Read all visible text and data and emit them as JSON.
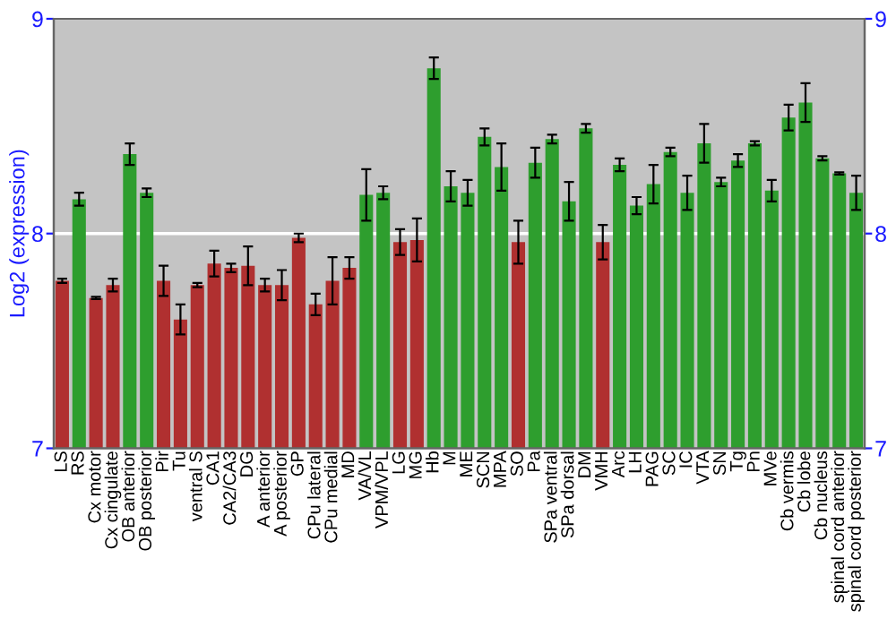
{
  "chart_data": {
    "type": "bar",
    "ylabel": "Log2 (expression)",
    "categories": [
      "LS",
      "RS",
      "Cx motor",
      "Cx cingulate",
      "OB anterior",
      "OB posterior",
      "Pir",
      "Tu",
      "ventral S",
      "CA1",
      "CA2/CA3",
      "DG",
      "A anterior",
      "A posterior",
      "GP",
      "CPu lateral",
      "CPu medial",
      "MD",
      "VA/VL",
      "VPM/VPL",
      "LG",
      "MG",
      "Hb",
      "M",
      "ME",
      "SCN",
      "MPA",
      "SO",
      "Pa",
      "SPa ventral",
      "SPa dorsal",
      "DM",
      "VMH",
      "Arc",
      "LH",
      "PAG",
      "SC",
      "IC",
      "VTA",
      "SN",
      "Tg",
      "Pn",
      "MVe",
      "Cb vermis",
      "Cb lobe",
      "Cb nucleus",
      "spinal cord anterior",
      "spinal cord posterior"
    ],
    "values": [
      7.78,
      8.16,
      7.7,
      7.76,
      8.37,
      8.19,
      7.78,
      7.6,
      7.76,
      7.86,
      7.84,
      7.85,
      7.76,
      7.76,
      7.98,
      7.67,
      7.78,
      7.84,
      8.18,
      8.19,
      7.96,
      7.97,
      8.77,
      8.22,
      8.19,
      8.45,
      8.31,
      7.96,
      8.33,
      8.44,
      8.15,
      8.49,
      7.96,
      8.32,
      8.13,
      8.23,
      8.38,
      8.19,
      8.42,
      8.24,
      8.34,
      8.42,
      8.2,
      8.54,
      8.61,
      8.35,
      8.28,
      8.19
    ],
    "errors": [
      0.01,
      0.03,
      0.005,
      0.03,
      0.05,
      0.02,
      0.07,
      0.07,
      0.01,
      0.06,
      0.02,
      0.09,
      0.03,
      0.07,
      0.02,
      0.05,
      0.11,
      0.05,
      0.12,
      0.03,
      0.06,
      0.1,
      0.05,
      0.07,
      0.06,
      0.04,
      0.11,
      0.1,
      0.07,
      0.02,
      0.09,
      0.02,
      0.08,
      0.03,
      0.04,
      0.09,
      0.02,
      0.08,
      0.09,
      0.02,
      0.03,
      0.01,
      0.05,
      0.06,
      0.09,
      0.01,
      0.005,
      0.08
    ],
    "colors": [
      "#b03030",
      "#2e9e2e",
      "#b03030",
      "#b03030",
      "#2e9e2e",
      "#2e9e2e",
      "#b03030",
      "#b03030",
      "#b03030",
      "#b03030",
      "#b03030",
      "#b03030",
      "#b03030",
      "#b03030",
      "#b03030",
      "#b03030",
      "#b03030",
      "#b03030",
      "#2e9e2e",
      "#2e9e2e",
      "#b03030",
      "#b03030",
      "#2e9e2e",
      "#2e9e2e",
      "#2e9e2e",
      "#2e9e2e",
      "#2e9e2e",
      "#b03030",
      "#2e9e2e",
      "#2e9e2e",
      "#2e9e2e",
      "#2e9e2e",
      "#b03030",
      "#2e9e2e",
      "#2e9e2e",
      "#2e9e2e",
      "#2e9e2e",
      "#2e9e2e",
      "#2e9e2e",
      "#2e9e2e",
      "#2e9e2e",
      "#2e9e2e",
      "#2e9e2e",
      "#2e9e2e",
      "#2e9e2e",
      "#2e9e2e",
      "#2e9e2e",
      "#2e9e2e"
    ],
    "ylim": [
      7,
      9
    ],
    "yticks": [
      7,
      8,
      9
    ],
    "y2lim": [
      7,
      9
    ],
    "y2ticks": [
      7,
      8,
      9
    ],
    "ref_lines": [
      {
        "axis": "y",
        "value": 8,
        "color": "#ffffff"
      }
    ],
    "grid": false,
    "legend": false
  }
}
